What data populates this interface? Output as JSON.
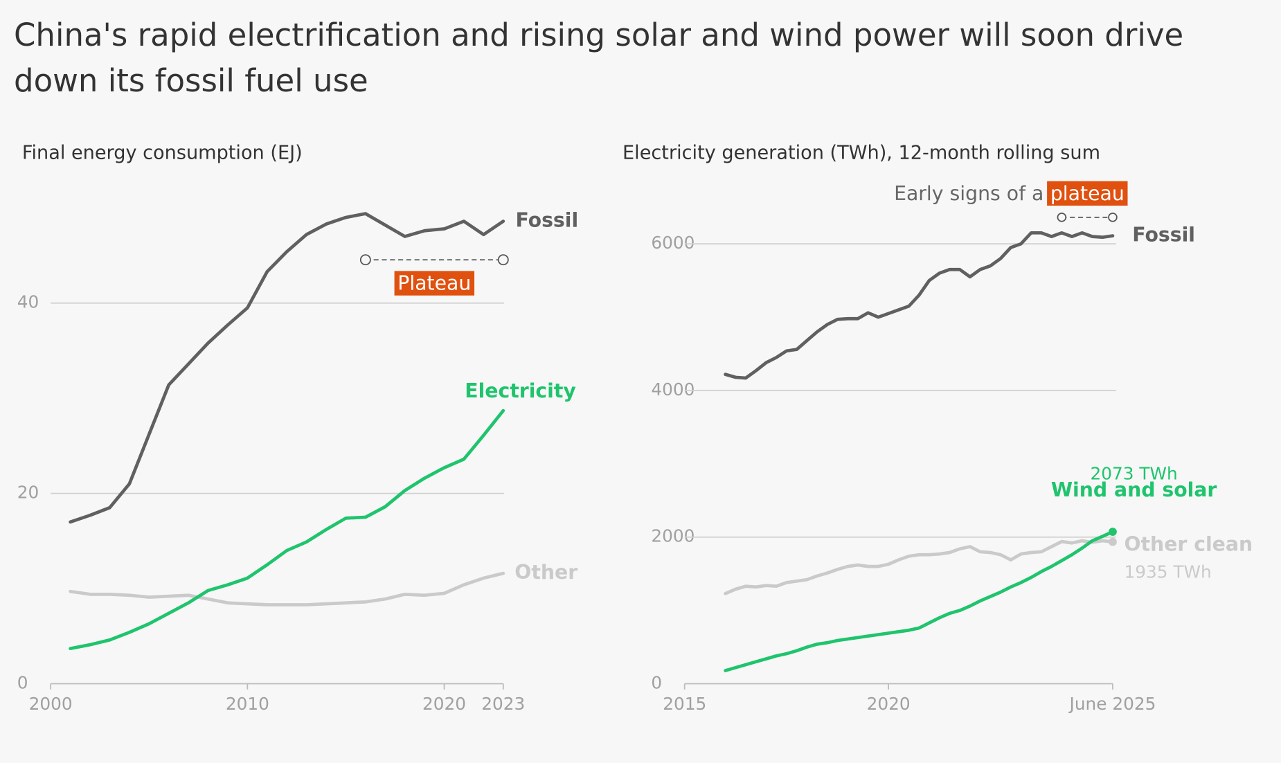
{
  "title": "China's rapid electrification and rising solar and wind power will soon drive down its fossil fuel use",
  "chart_data": [
    {
      "type": "line",
      "title": "Final energy consumption (EJ)",
      "x": [
        2001,
        2002,
        2003,
        2004,
        2005,
        2006,
        2007,
        2008,
        2009,
        2010,
        2011,
        2012,
        2013,
        2014,
        2015,
        2016,
        2017,
        2018,
        2019,
        2020,
        2021,
        2022,
        2023
      ],
      "xlim": [
        2000,
        2023
      ],
      "xticks": [
        2000,
        2010,
        2020,
        2023
      ],
      "ylim": [
        0,
        50
      ],
      "yticks": [
        0,
        20,
        40
      ],
      "grid": true,
      "series": [
        {
          "name": "Fossil",
          "color": "#606060",
          "values": [
            17.0,
            17.7,
            18.5,
            21.0,
            26.2,
            31.4,
            33.6,
            35.8,
            37.7,
            39.5,
            43.3,
            45.4,
            47.2,
            48.3,
            49.0,
            49.4,
            48.2,
            47.0,
            47.6,
            47.8,
            48.6,
            47.2,
            48.6
          ]
        },
        {
          "name": "Electricity",
          "color": "#1fc46d",
          "values": [
            3.7,
            4.1,
            4.6,
            5.4,
            6.3,
            7.4,
            8.5,
            9.8,
            10.4,
            11.1,
            12.5,
            14.0,
            14.9,
            16.2,
            17.4,
            17.5,
            18.6,
            20.3,
            21.6,
            22.7,
            23.6,
            26.1,
            28.7
          ]
        },
        {
          "name": "Other",
          "color": "#cacaca",
          "values": [
            9.7,
            9.4,
            9.4,
            9.3,
            9.1,
            9.2,
            9.3,
            8.9,
            8.5,
            8.4,
            8.3,
            8.3,
            8.3,
            8.4,
            8.5,
            8.6,
            8.9,
            9.4,
            9.3,
            9.5,
            10.4,
            11.1,
            11.6
          ]
        }
      ],
      "annotations": [
        {
          "text": "Plateau",
          "from": 2016,
          "to": 2023
        }
      ]
    },
    {
      "type": "line",
      "title": "Electricity generation (TWh), 12-month rolling sum",
      "x": [
        2016.0,
        2016.25,
        2016.5,
        2016.75,
        2017.0,
        2017.25,
        2017.5,
        2017.75,
        2018.0,
        2018.25,
        2018.5,
        2018.75,
        2019.0,
        2019.25,
        2019.5,
        2019.75,
        2020.0,
        2020.25,
        2020.5,
        2020.75,
        2021.0,
        2021.25,
        2021.5,
        2021.75,
        2022.0,
        2022.25,
        2022.5,
        2022.75,
        2023.0,
        2023.25,
        2023.5,
        2023.75,
        2024.0,
        2024.25,
        2024.5,
        2024.75,
        2025.0,
        2025.25,
        2025.5
      ],
      "xlim": [
        2015,
        2025.5
      ],
      "xticks": [
        2015,
        2020,
        {
          "value": 2025.5,
          "label": "June 2025"
        }
      ],
      "ylim": [
        0,
        6000
      ],
      "yticks": [
        0,
        2000,
        4000,
        6000
      ],
      "grid": true,
      "series": [
        {
          "name": "Fossil",
          "color": "#606060",
          "values": [
            4220,
            4180,
            4170,
            4270,
            4380,
            4450,
            4540,
            4560,
            4680,
            4800,
            4900,
            4970,
            4980,
            4980,
            5060,
            5000,
            5050,
            5100,
            5150,
            5300,
            5500,
            5600,
            5650,
            5650,
            5550,
            5650,
            5700,
            5800,
            5950,
            6000,
            6150,
            6150,
            6100,
            6150,
            6100,
            6150,
            6100,
            6090,
            6110
          ]
        },
        {
          "name": "Wind and solar",
          "color": "#1fc46d",
          "marker_last": true,
          "values": [
            180,
            220,
            260,
            300,
            340,
            380,
            410,
            450,
            500,
            540,
            560,
            590,
            610,
            630,
            650,
            670,
            690,
            710,
            730,
            760,
            830,
            900,
            960,
            1000,
            1060,
            1130,
            1190,
            1250,
            1320,
            1380,
            1450,
            1530,
            1600,
            1680,
            1760,
            1850,
            1950,
            2010,
            2073
          ],
          "value_labels": [
            null,
            null,
            null,
            null,
            null,
            null,
            null,
            null,
            null,
            null,
            null,
            null,
            null,
            null,
            null,
            null,
            null,
            null,
            null,
            null,
            null,
            null,
            null,
            null,
            null,
            null,
            null,
            null,
            null,
            null,
            null,
            null,
            null,
            null,
            null,
            null,
            null,
            null,
            "2073 TWh"
          ]
        },
        {
          "name": "Other clean",
          "color": "#cacaca",
          "marker_last": true,
          "values": [
            1230,
            1290,
            1330,
            1320,
            1340,
            1330,
            1380,
            1400,
            1420,
            1470,
            1510,
            1560,
            1600,
            1620,
            1600,
            1600,
            1630,
            1690,
            1740,
            1760,
            1760,
            1770,
            1790,
            1840,
            1870,
            1800,
            1790,
            1760,
            1690,
            1770,
            1790,
            1800,
            1870,
            1940,
            1920,
            1950,
            1930,
            1950,
            1935
          ],
          "value_labels": [
            null,
            null,
            null,
            null,
            null,
            null,
            null,
            null,
            null,
            null,
            null,
            null,
            null,
            null,
            null,
            null,
            null,
            null,
            null,
            null,
            null,
            null,
            null,
            null,
            null,
            null,
            null,
            null,
            null,
            null,
            null,
            null,
            null,
            null,
            null,
            null,
            null,
            null,
            "1935 TWh"
          ]
        }
      ],
      "annotations": [
        {
          "text": "Early signs of a",
          "highlight": "plateau",
          "from": 2024.25,
          "to": 2025.5
        }
      ]
    }
  ]
}
